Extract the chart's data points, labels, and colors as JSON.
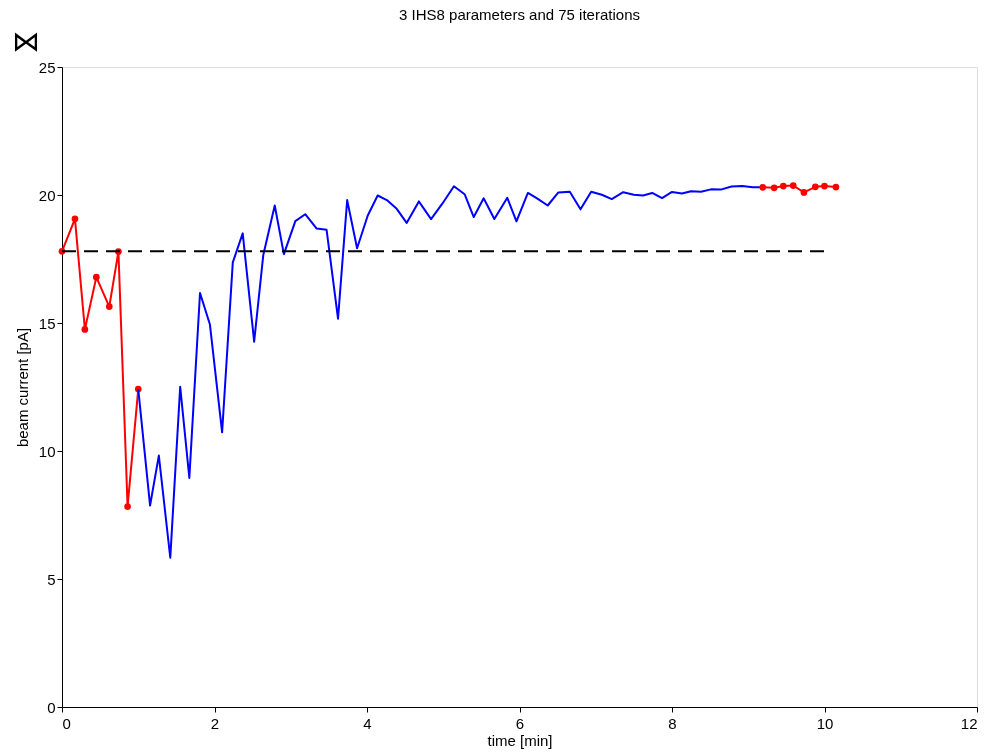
{
  "chart_data": {
    "type": "line",
    "title": "3 IHS8 parameters and 75 iterations",
    "xlabel": "time [min]",
    "ylabel": "beam current [pA]",
    "annotations": [
      "⋈"
    ],
    "xlim": [
      0,
      12
    ],
    "xticks": [
      0,
      2,
      4,
      6,
      8,
      10,
      12
    ],
    "ylim": [
      0,
      25
    ],
    "yticks": [
      0,
      5,
      10,
      15,
      20,
      25
    ],
    "grid": false,
    "series": [
      {
        "color": "#ff0000",
        "marker": "circle",
        "line_style": "solid",
        "x": [
          0,
          0.17,
          0.3,
          0.45,
          0.62,
          0.74,
          0.86,
          1.0
        ],
        "values": [
          17.8,
          19.07,
          14.75,
          16.79,
          15.64,
          17.79,
          7.83,
          12.42
        ]
      },
      {
        "color": "#0000ff",
        "marker": "none",
        "line_style": "solid",
        "x": [
          1.0,
          1.155,
          1.27,
          1.42,
          1.55,
          1.67,
          1.81,
          1.94,
          2.1,
          2.24,
          2.37,
          2.52,
          2.64,
          2.79,
          2.91,
          3.06,
          3.19,
          3.34,
          3.47,
          3.62,
          3.74,
          3.87,
          4.01,
          4.14,
          4.26,
          4.39,
          4.52,
          4.68,
          4.84,
          4.99,
          5.14,
          5.28,
          5.4,
          5.53,
          5.67,
          5.84,
          5.96,
          6.11,
          6.23,
          6.37,
          6.51,
          6.66,
          6.8,
          6.94,
          7.08,
          7.21,
          7.36,
          7.5,
          7.62,
          7.74,
          7.87,
          8.0,
          8.13,
          8.25,
          8.38,
          8.51,
          8.64,
          8.78,
          8.92,
          9.06,
          9.19
        ],
        "values": [
          12.42,
          7.87,
          9.82,
          5.83,
          12.51,
          8.95,
          16.17,
          14.94,
          10.73,
          17.37,
          18.5,
          14.27,
          17.66,
          19.59,
          17.69,
          18.98,
          19.25,
          18.69,
          18.64,
          15.17,
          19.8,
          17.92,
          19.2,
          19.98,
          19.8,
          19.46,
          18.91,
          19.75,
          19.06,
          19.67,
          20.34,
          20.03,
          19.14,
          19.87,
          19.06,
          19.89,
          18.97,
          20.08,
          19.87,
          19.59,
          20.1,
          20.13,
          19.44,
          20.13,
          20.01,
          19.84,
          20.11,
          20.01,
          19.98,
          20.08,
          19.88,
          20.12,
          20.06,
          20.15,
          20.13,
          20.22,
          20.21,
          20.33,
          20.35,
          20.3,
          20.3
        ]
      },
      {
        "color": "#ff0000",
        "marker": "circle",
        "line_style": "solid",
        "x": [
          9.19,
          9.34,
          9.46,
          9.59,
          9.73,
          9.88,
          10.0,
          10.15
        ],
        "values": [
          20.3,
          20.28,
          20.35,
          20.37,
          20.1,
          20.32,
          20.35,
          20.31
        ]
      },
      {
        "color": "#000000",
        "marker": "none",
        "line_style": "dashed",
        "x": [
          0,
          10
        ],
        "values": [
          17.8,
          17.8
        ]
      }
    ]
  }
}
